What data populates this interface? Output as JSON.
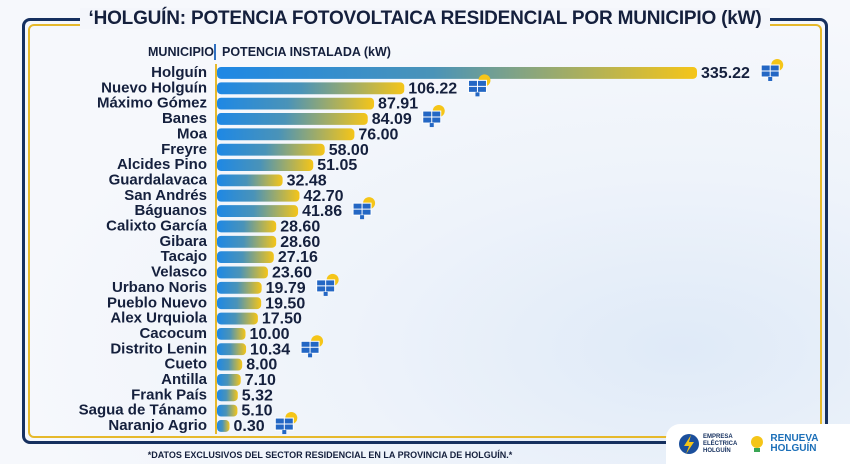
{
  "title": "‘HOLGUÍN: POTENCIA FOTOVOLTAICA RESIDENCIAL POR MUNICIPIO (kW)",
  "header": {
    "municipio": "MUNICIPIO",
    "potencia": "POTENCIA INSTALADA (kW)"
  },
  "footnote": "*DATOS EXCLUSIVOS DEL SECTOR RESIDENCIAL EN LA PROVINCIA DE HOLGUÍN.*",
  "logos": {
    "empresa": [
      "EMPRESA",
      "ELÉCTRICA",
      "HOLGUÍN"
    ],
    "renueva": [
      "RENUEVA",
      "HOLGUÍN"
    ]
  },
  "colors": {
    "bar_start": "#1e88e5",
    "bar_end": "#f5c518",
    "frame": "#16305f",
    "frame_accent": "#e6b92c",
    "text": "#15203d"
  },
  "chart_data": {
    "type": "bar",
    "orientation": "horizontal",
    "title": "‘HOLGUÍN: POTENCIA FOTOVOLTAICA RESIDENCIAL POR MUNICIPIO (kW)",
    "xlabel": "POTENCIA INSTALADA (kW)",
    "ylabel": "MUNICIPIO",
    "categories": [
      "Holguín",
      "Nuevo Holguín",
      "Máximo Gómez",
      "Banes",
      "Moa",
      "Freyre",
      "Alcides Pino",
      "Guardalavaca",
      "San Andrés",
      "Báguanos",
      "Calixto García",
      "Gibara",
      "Tacajo",
      "Velasco",
      "Urbano Noris",
      "Pueblo Nuevo",
      "Alex Urquiola",
      "Cacocum",
      "Distrito Lenin",
      "Cueto",
      "Antilla",
      "Frank País",
      "Sagua de Tánamo",
      "Naranjo Agrio"
    ],
    "values": [
      335.22,
      106.22,
      87.91,
      84.09,
      76.0,
      58.0,
      51.05,
      32.48,
      42.7,
      41.86,
      28.6,
      28.6,
      27.16,
      23.6,
      19.79,
      19.5,
      17.5,
      10.0,
      10.34,
      8.0,
      7.1,
      5.32,
      5.1,
      0.3
    ],
    "value_labels": [
      "335.22",
      "106.22",
      "87.91",
      "84.09",
      "76.00",
      "58.00",
      "51.05",
      "32.48",
      "42.70",
      "41.86",
      "28.60",
      "28.60",
      "27.16",
      "23.60",
      "19.79",
      "19.50",
      "17.50",
      "10.00",
      "10.34",
      "8.00",
      "7.10",
      "5.32",
      "5.10",
      "0.30"
    ],
    "solar_icon_rows": [
      "Holguín",
      "Nuevo Holguín",
      "Banes",
      "Báguanos",
      "Urbano Noris",
      "Distrito Lenin",
      "Naranjo Agrio"
    ],
    "grid": false,
    "legend": "none"
  }
}
